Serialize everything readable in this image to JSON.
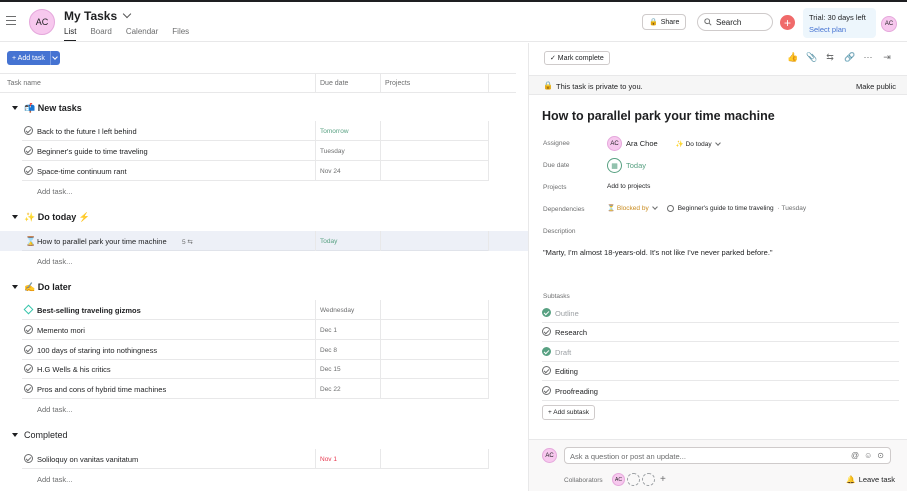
{
  "header": {
    "user_initials": "AC",
    "title": "My Tasks",
    "tabs": [
      "List",
      "Board",
      "Calendar",
      "Files"
    ],
    "share_label": "Share",
    "search_placeholder": "Search",
    "trial_line1": "Trial: 30 days left",
    "trial_line2": "Select plan"
  },
  "toolbar": {
    "add_task_label": "+ Add task"
  },
  "columns": {
    "task_name": "Task name",
    "due_date": "Due date",
    "projects": "Projects"
  },
  "sections": [
    {
      "title": "📬 New tasks",
      "tasks": [
        {
          "name": "Back to the future I left behind",
          "due": "Tomorrow",
          "due_color": "#58a182"
        },
        {
          "name": "Beginner's guide to time traveling",
          "due": "Tuesday"
        },
        {
          "name": "Space-time continuum rant",
          "due": "Nov 24"
        }
      ]
    },
    {
      "title": "✨ Do today ⚡",
      "tasks": [
        {
          "name": "How to parallel park your time machine",
          "due": "Today",
          "due_color": "#58a182",
          "subtask_count": "5 ⇆",
          "icon": "hourglass-icon"
        }
      ]
    },
    {
      "title": "✍ Do later",
      "tasks": [
        {
          "name": "Best-selling traveling gizmos",
          "due": "Wednesday",
          "icon": "milestone-icon"
        },
        {
          "name": "Memento mori",
          "due": "Dec 1"
        },
        {
          "name": "100 days of staring into nothingness",
          "due": "Dec 8"
        },
        {
          "name": "H.G Wells & his critics",
          "due": "Dec 15"
        },
        {
          "name": "Pros and cons of hybrid time machines",
          "due": "Dec 22"
        }
      ]
    },
    {
      "title": "Completed",
      "tasks": [
        {
          "name": "Soliloquy on vanitas vanitatum",
          "due": "Nov 1",
          "due_color": "#e8384f"
        }
      ]
    }
  ],
  "add_task_row": "Add task...",
  "detail": {
    "mark_complete": "✓ Mark complete",
    "private_msg": "This task is private to you.",
    "make_public": "Make public",
    "title": "How to parallel park your time machine",
    "labels": {
      "assignee": "Assignee",
      "due_date": "Due date",
      "projects": "Projects",
      "dependencies": "Dependencies",
      "description": "Description",
      "subtasks": "Subtasks"
    },
    "assignee_name": "Ara Choe",
    "assignee_section": "✨ Do today",
    "due": "Today",
    "projects_add": "Add to projects",
    "blocked_by": "⏳ Blocked by",
    "dependency_task": "Beginner's guide to time traveling",
    "dependency_due": "· Tuesday",
    "description": "\"Marty, I'm almost 18-years-old. It's not like I've never parked before.\"",
    "subtasks": [
      {
        "name": "Outline",
        "done": true
      },
      {
        "name": "Research",
        "done": false
      },
      {
        "name": "Draft",
        "done": true
      },
      {
        "name": "Editing",
        "done": false
      },
      {
        "name": "Proofreading",
        "done": false
      }
    ],
    "add_subtask": "+ Add subtask",
    "comment_placeholder": "Ask a question or post an update...",
    "collaborators_label": "Collaborators",
    "leave_task": "Leave task"
  }
}
